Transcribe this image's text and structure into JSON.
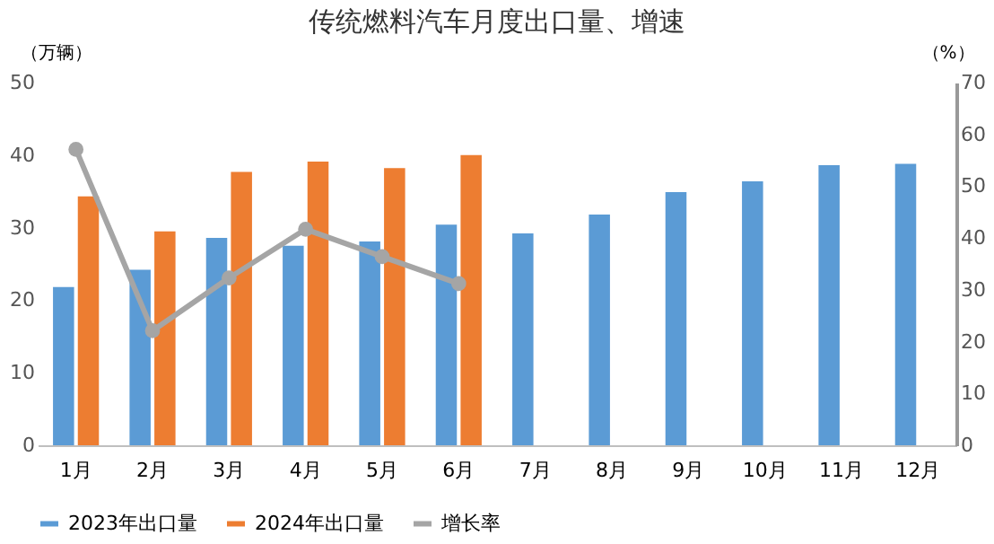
{
  "chart_data": {
    "type": "bar",
    "title": "传统燃料汽车月度出口量、增速",
    "ylabel": "（万辆）",
    "y2label": "（%）",
    "categories": [
      "1月",
      "2月",
      "3月",
      "4月",
      "5月",
      "6月",
      "7月",
      "8月",
      "9月",
      "10月",
      "11月",
      "12月"
    ],
    "series": [
      {
        "name": "2023年出口量",
        "color": "#5b9bd5",
        "values": [
          21.8,
          24.2,
          28.6,
          27.5,
          28.1,
          30.4,
          29.2,
          31.8,
          34.9,
          36.4,
          38.6,
          38.8
        ]
      },
      {
        "name": "2024年出口量",
        "color": "#ed7d31",
        "values": [
          34.3,
          29.5,
          37.7,
          39.1,
          38.2,
          40.0,
          null,
          null,
          null,
          null,
          null,
          null
        ]
      },
      {
        "name": "增长率",
        "color": "#a5a5a5",
        "type": "line",
        "axis": "y2",
        "marker": "circle",
        "values": [
          57.1,
          22.1,
          32.3,
          41.7,
          36.4,
          31.2,
          null,
          null,
          null,
          null,
          null,
          null
        ]
      }
    ],
    "ylim": [
      0,
      50
    ],
    "yticks": [
      0,
      10,
      20,
      30,
      40,
      50
    ],
    "y2lim": [
      0,
      70
    ],
    "y2ticks": [
      0,
      10,
      20,
      30,
      40,
      50,
      60,
      70
    ],
    "grid": false,
    "legend": "bottom"
  }
}
